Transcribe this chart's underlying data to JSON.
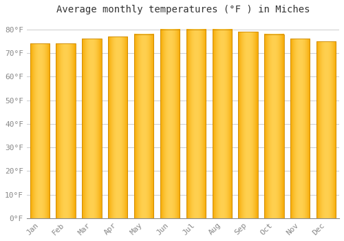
{
  "title": "Average monthly temperatures (°F ) in Miches",
  "months": [
    "Jan",
    "Feb",
    "Mar",
    "Apr",
    "May",
    "Jun",
    "Jul",
    "Aug",
    "Sep",
    "Oct",
    "Nov",
    "Dec"
  ],
  "values": [
    74,
    74,
    76,
    77,
    78,
    80,
    80,
    80,
    79,
    78,
    76,
    75
  ],
  "bar_color_left": "#F5A800",
  "bar_color_center": "#FFD050",
  "bar_color_right": "#F5A800",
  "bar_edge_color": "#CC8800",
  "background_color": "#FFFFFF",
  "grid_color": "#CCCCCC",
  "tick_color": "#888888",
  "title_color": "#333333",
  "yticks": [
    0,
    10,
    20,
    30,
    40,
    50,
    60,
    70,
    80
  ],
  "ytick_labels": [
    "0°F",
    "10°F",
    "20°F",
    "30°F",
    "40°F",
    "50°F",
    "60°F",
    "70°F",
    "80°F"
  ],
  "ylim": [
    0,
    84
  ],
  "title_fontsize": 10,
  "tick_fontsize": 8,
  "bar_width": 0.75
}
